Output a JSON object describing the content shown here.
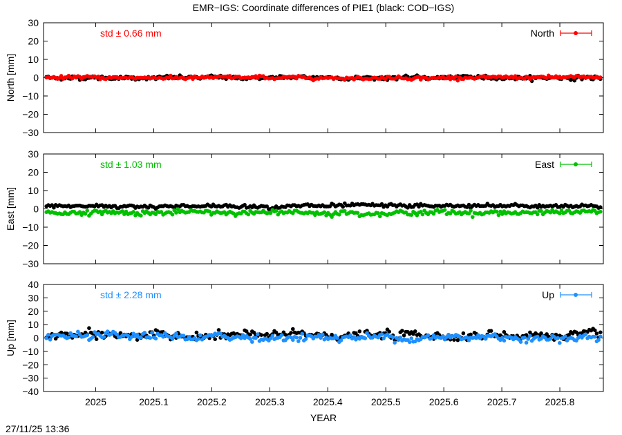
{
  "title": "EMR−IGS: Coordinate differences of PIE1 (black: COD−IGS)",
  "timestamp": "27/11/25 13:36",
  "colors": {
    "north": "#ff0000",
    "east": "#00c000",
    "up": "#1e90ff",
    "reference": "#000000"
  },
  "chart_data": [
    {
      "type": "scatter",
      "component": "North",
      "ylabel": "North [mm]",
      "xlabel": "",
      "std_label": "std ± 0.66 mm",
      "legend": "North",
      "legend_position": "top-right",
      "grid": false,
      "xlim": [
        2024.91,
        2025.875
      ],
      "ylim": [
        -30,
        30
      ],
      "yticks": [
        "30",
        "20",
        "10",
        "0",
        "−10",
        "−20",
        "−30"
      ],
      "ytick_values": [
        30,
        20,
        10,
        0,
        -10,
        -20,
        -30
      ],
      "xticks": [],
      "series": [
        {
          "name": "EMR−IGS",
          "color": "#ff0000",
          "mean": 0.0,
          "std": 0.66
        },
        {
          "name": "COD−IGS",
          "color": "#000000",
          "mean": 0.0,
          "std": 0.8
        }
      ]
    },
    {
      "type": "scatter",
      "component": "East",
      "ylabel": "East [mm]",
      "xlabel": "",
      "std_label": "std ± 1.03 mm",
      "legend": "East",
      "legend_position": "top-right",
      "grid": false,
      "xlim": [
        2024.91,
        2025.875
      ],
      "ylim": [
        -30,
        30
      ],
      "yticks": [
        "30",
        "20",
        "10",
        "0",
        "−10",
        "−20",
        "−30"
      ],
      "ytick_values": [
        30,
        20,
        10,
        0,
        -10,
        -20,
        -30
      ],
      "xticks": [],
      "series": [
        {
          "name": "EMR−IGS",
          "color": "#00c000",
          "mean": -2.0,
          "std": 1.03
        },
        {
          "name": "COD−IGS",
          "color": "#000000",
          "mean": 1.5,
          "std": 0.8
        }
      ]
    },
    {
      "type": "scatter",
      "component": "Up",
      "ylabel": "Up [mm]",
      "xlabel": "YEAR",
      "std_label": "std ± 2.28 mm",
      "legend": "Up",
      "legend_position": "top-right",
      "grid": false,
      "xlim": [
        2024.91,
        2025.875
      ],
      "ylim": [
        -40,
        40
      ],
      "yticks": [
        "40",
        "30",
        "20",
        "10",
        "0",
        "−10",
        "−20",
        "−30",
        "−40"
      ],
      "ytick_values": [
        40,
        30,
        20,
        10,
        0,
        -10,
        -20,
        -30,
        -40
      ],
      "xticks": [
        "2025",
        "2025.1",
        "2025.2",
        "2025.3",
        "2025.4",
        "2025.5",
        "2025.6",
        "2025.7",
        "2025.8"
      ],
      "xtick_values": [
        2025.0,
        2025.1,
        2025.2,
        2025.3,
        2025.4,
        2025.5,
        2025.6,
        2025.7,
        2025.8
      ],
      "series": [
        {
          "name": "EMR−IGS",
          "color": "#1e90ff",
          "mean": 0.5,
          "std": 2.28
        },
        {
          "name": "COD−IGS",
          "color": "#000000",
          "mean": 2.0,
          "std": 2.5
        }
      ]
    }
  ]
}
